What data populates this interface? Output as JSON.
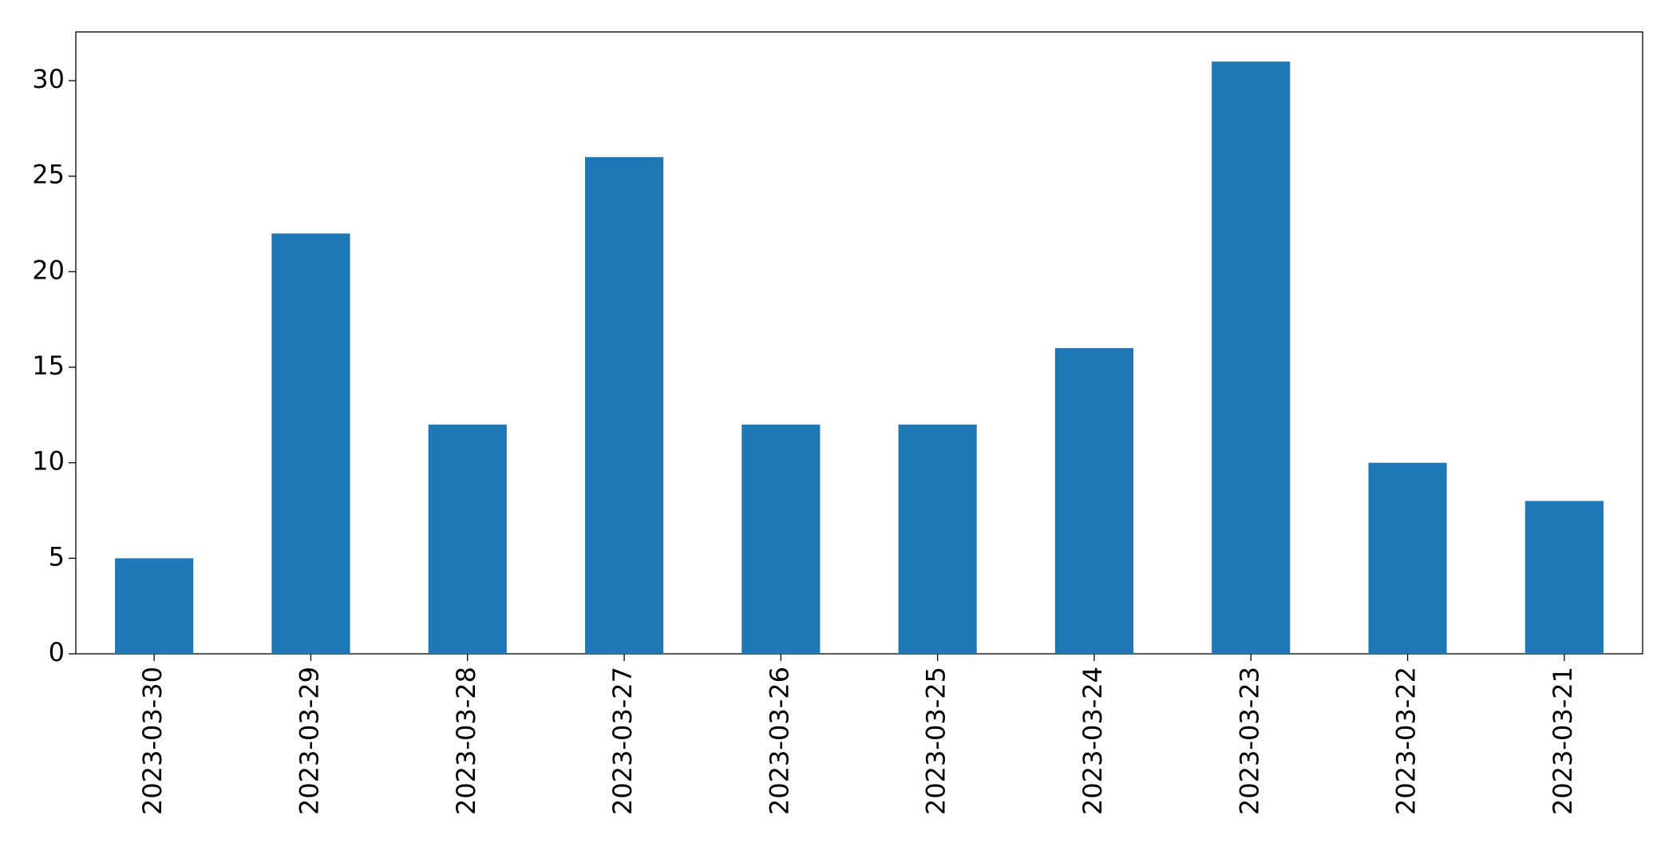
{
  "chart_data": {
    "type": "bar",
    "categories": [
      "2023-03-30",
      "2023-03-29",
      "2023-03-28",
      "2023-03-27",
      "2023-03-26",
      "2023-03-25",
      "2023-03-24",
      "2023-03-23",
      "2023-03-22",
      "2023-03-21"
    ],
    "values": [
      5,
      22,
      12,
      26,
      12,
      12,
      16,
      31,
      10,
      8
    ],
    "color": "#1f77b4",
    "ylim": [
      0,
      32.55
    ],
    "yticks": [
      0,
      5,
      10,
      15,
      20,
      25,
      30
    ],
    "grid": false
  }
}
